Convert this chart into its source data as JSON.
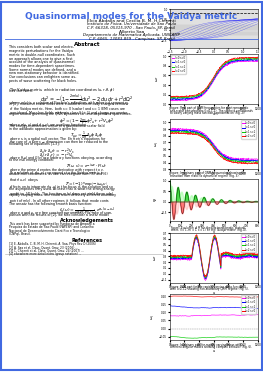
{
  "title": "Quasinormal modes for the Vaidya metric",
  "title_color": "#4169E1",
  "authors1": "Elcio Abdalla and Cecilia B. M. H.Chirenti",
  "institute1": "Instituto de Fisica, Universidade de Sao Paulo",
  "address1": "C.P. 66318, 05315-970 - Sao Paulo, SP, Brasil",
  "authors2": "Alberto Saa",
  "institute2": "Departamento de Matematica Aplicada, UNICAMP",
  "address2": "C.P. 6065, 13083-859 - Campinas, SP, Brasil",
  "bg_color": "#ffffff",
  "text_color": "#000000",
  "border_color": "#4169E1",
  "colors_qnm": [
    "#ff00ff",
    "#0000ff",
    "#00cc00",
    "#ff0000"
  ],
  "legend_labels": [
    "l=0 s=0",
    "l=1 s=0",
    "l=1 s=1",
    "l=2 s=0"
  ]
}
